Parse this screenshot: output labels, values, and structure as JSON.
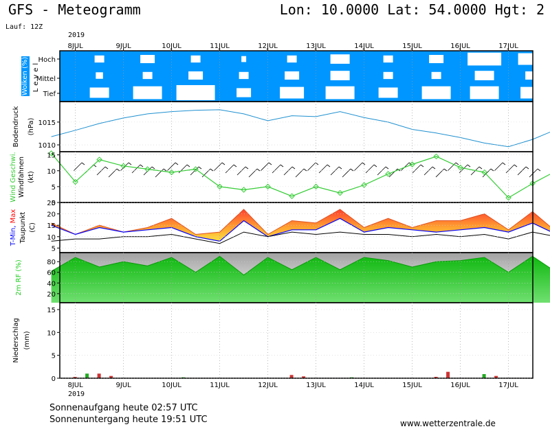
{
  "header": {
    "title": "GFS - Meteogramm",
    "location": "Lon: 10.0000  Lat: 54.0000  Hgt: 2",
    "run": "Lauf: 12Z",
    "year": "2019"
  },
  "footer": {
    "sunrise": "Sonnenaufgang heute 02:57 UTC",
    "sunset": "Sonnenuntergang heute 19:51 UTC",
    "website": "www.wetterzentrale.de"
  },
  "colors": {
    "sky": "#0096ff",
    "cloud": "#ffffff",
    "pressure": "#1e90d0",
    "wind": "#33cc33",
    "tmin": "#0000ff",
    "tmax": "#ff0000",
    "dewpoint": "#000000",
    "rh": "#22cc22",
    "precip_rain": "#cc3333",
    "precip_conv": "#22aa22"
  },
  "chart_data": [
    {
      "type": "heatmap",
      "panel": "clouds",
      "ylabel": [
        "Wolken (%)",
        "Level"
      ],
      "levels": [
        "Hoch",
        "Mittel",
        "Tief"
      ],
      "x": [
        "8JUL",
        "9JUL",
        "10JUL",
        "11JUL",
        "12JUL",
        "13JUL",
        "14JUL",
        "15JUL",
        "16JUL",
        "17JUL"
      ],
      "cover_pct": {
        "Hoch": [
          20,
          30,
          20,
          10,
          20,
          40,
          20,
          30,
          70,
          60
        ],
        "Mittel": [
          15,
          20,
          30,
          20,
          30,
          40,
          20,
          20,
          40,
          30
        ],
        "Tief": [
          40,
          60,
          80,
          30,
          50,
          60,
          40,
          60,
          60,
          50
        ]
      }
    },
    {
      "type": "line",
      "panel": "pressure",
      "ylabel": [
        "Bodendruck",
        "(hPa)"
      ],
      "yticks": [
        1010,
        1015
      ],
      "ylim": [
        1008.5,
        1019.5
      ],
      "x_start": "2019-07-07 12:00",
      "step_hours": 12,
      "series": [
        {
          "values": [
            1011.8,
            1013.2,
            1014.7,
            1015.9,
            1016.8,
            1017.3,
            1017.6,
            1017.7,
            1016.8,
            1015.3,
            1016.4,
            1016.2,
            1017.3,
            1016.0,
            1015.0,
            1013.4,
            1012.6,
            1011.6,
            1010.4,
            1009.6,
            1011.2,
            1013.4,
            1015.0
          ]
        }
      ]
    },
    {
      "type": "line",
      "panel": "wind",
      "ylabel": [
        "Wind Geschwi.",
        "Windfahnen",
        "(kt)"
      ],
      "yticks": [
        0,
        5,
        10,
        15
      ],
      "ylim": [
        0,
        16
      ],
      "x_start": "2019-07-07 12:00",
      "step_hours": 12,
      "series": [
        {
          "name": "Wind Geschwi.",
          "values": [
            15.5,
            6.5,
            13.5,
            11.5,
            10.5,
            9.5,
            10.5,
            5.0,
            4.0,
            5.0,
            2.0,
            5.0,
            3.0,
            5.5,
            9.0,
            12.0,
            14.5,
            11.0,
            9.5,
            1.5,
            6.0,
            10.0,
            5.0
          ]
        }
      ]
    },
    {
      "type": "area",
      "panel": "temperature",
      "ylabel": [
        "T-Min, Max",
        "Taupunkt",
        "(C)"
      ],
      "yticks": [
        5,
        10,
        15,
        20,
        25
      ],
      "ylim": [
        3,
        25
      ],
      "x_start": "2019-07-07 12:00",
      "step_hours": 12,
      "series": [
        {
          "name": "T-Min",
          "values": [
            15,
            11,
            14,
            12,
            13,
            14,
            10,
            8,
            17,
            10,
            13,
            13,
            18,
            12,
            14,
            13,
            12,
            13,
            14,
            12,
            16,
            11,
            16
          ]
        },
        {
          "name": "Max",
          "values": [
            16,
            11,
            15,
            12,
            14,
            18,
            11,
            12,
            22,
            11,
            17,
            16,
            22,
            14,
            18,
            14,
            17,
            17,
            20,
            13,
            21,
            12,
            21
          ]
        },
        {
          "name": "Taupunkt",
          "values": [
            8,
            9,
            9,
            10,
            10,
            11,
            9,
            7,
            12,
            10,
            12,
            11,
            12,
            11,
            11,
            10,
            11,
            10,
            11,
            9,
            12,
            10,
            12
          ]
        }
      ]
    },
    {
      "type": "area",
      "panel": "humidity",
      "ylabel": [
        "2m RF (%)"
      ],
      "yticks": [
        20,
        40,
        60,
        80
      ],
      "ylim": [
        3,
        97
      ],
      "x_start": "2019-07-07 12:00",
      "step_hours": 12,
      "series": [
        {
          "name": "2m RF (%)",
          "values": [
            62,
            88,
            70,
            80,
            72,
            88,
            60,
            90,
            55,
            88,
            65,
            88,
            65,
            88,
            82,
            70,
            80,
            82,
            88,
            60,
            90,
            60,
            90
          ]
        }
      ]
    },
    {
      "type": "bar",
      "panel": "precipitation",
      "ylabel": [
        "Niederschlag",
        "(mm)"
      ],
      "yticks": [
        0,
        5,
        10,
        15
      ],
      "ylim": [
        0,
        16.5
      ],
      "bars": [
        {
          "x": "2019-07-08 00:00",
          "value": 0.3
        },
        {
          "x": "2019-07-08 06:00",
          "value": 1.0
        },
        {
          "x": "2019-07-08 12:00",
          "value": 1.0
        },
        {
          "x": "2019-07-08 18:00",
          "value": 0.5
        },
        {
          "x": "2019-07-10 06:00",
          "value": 0.2
        },
        {
          "x": "2019-07-12 12:00",
          "value": 0.7
        },
        {
          "x": "2019-07-12 18:00",
          "value": 0.4
        },
        {
          "x": "2019-07-13 18:00",
          "value": 0.2
        },
        {
          "x": "2019-07-15 12:00",
          "value": 0.3
        },
        {
          "x": "2019-07-15 18:00",
          "value": 1.4
        },
        {
          "x": "2019-07-16 12:00",
          "value": 0.9
        },
        {
          "x": "2019-07-16 18:00",
          "value": 0.5
        }
      ]
    }
  ]
}
